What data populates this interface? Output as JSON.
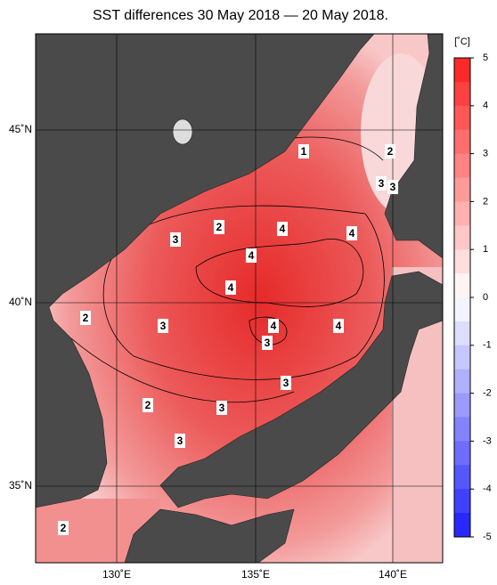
{
  "title": "SST differences 30 May 2018 — 20 May 2018.",
  "lat_labels": [
    "45˚N",
    "40˚N",
    "35˚N"
  ],
  "lon_labels": [
    "130˚E",
    "135˚E",
    "140˚E"
  ],
  "colorbar": {
    "unit": "[˚C]",
    "ticks": [
      5,
      4,
      3,
      2,
      1,
      0,
      -1,
      -2,
      -3,
      -4,
      -5
    ]
  },
  "contour_labels": [
    1,
    2,
    3,
    3,
    2,
    4,
    3,
    4,
    4,
    4,
    2,
    3,
    4,
    4,
    3,
    3,
    2,
    3,
    3,
    2
  ]
}
